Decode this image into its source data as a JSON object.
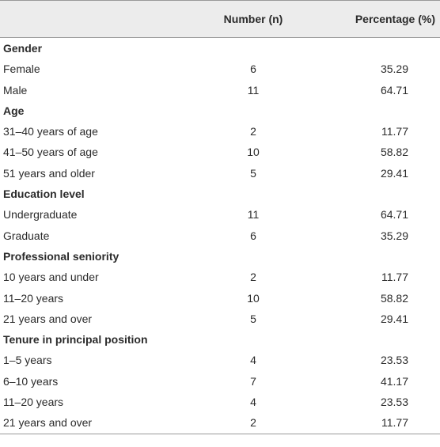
{
  "table": {
    "header": {
      "number": "Number (n)",
      "percentage": "Percentage (%)"
    },
    "sections": [
      {
        "title": "Gender",
        "rows": [
          [
            "Female",
            6,
            35.29
          ],
          [
            "Male",
            11,
            64.71
          ]
        ]
      },
      {
        "title": "Age",
        "rows": [
          [
            "31–40 years of age",
            2,
            11.77
          ],
          [
            "41–50 years of age",
            10,
            58.82
          ],
          [
            "51 years and older",
            5,
            29.41
          ]
        ]
      },
      {
        "title": "Education level",
        "rows": [
          [
            "Undergraduate",
            11,
            64.71
          ],
          [
            "Graduate",
            6,
            35.29
          ]
        ]
      },
      {
        "title": "Professional seniority",
        "rows": [
          [
            "10 years and under",
            2,
            11.77
          ],
          [
            "11–20 years",
            10,
            58.82
          ],
          [
            "21 years and over",
            5,
            29.41
          ]
        ]
      },
      {
        "title": "Tenure in principal position",
        "rows": [
          [
            "1–5 years",
            4,
            23.53
          ],
          [
            "6–10 years",
            7,
            41.17
          ],
          [
            "11–20 years",
            4,
            23.53
          ],
          [
            "21 years and over",
            2,
            11.77
          ]
        ]
      }
    ]
  }
}
